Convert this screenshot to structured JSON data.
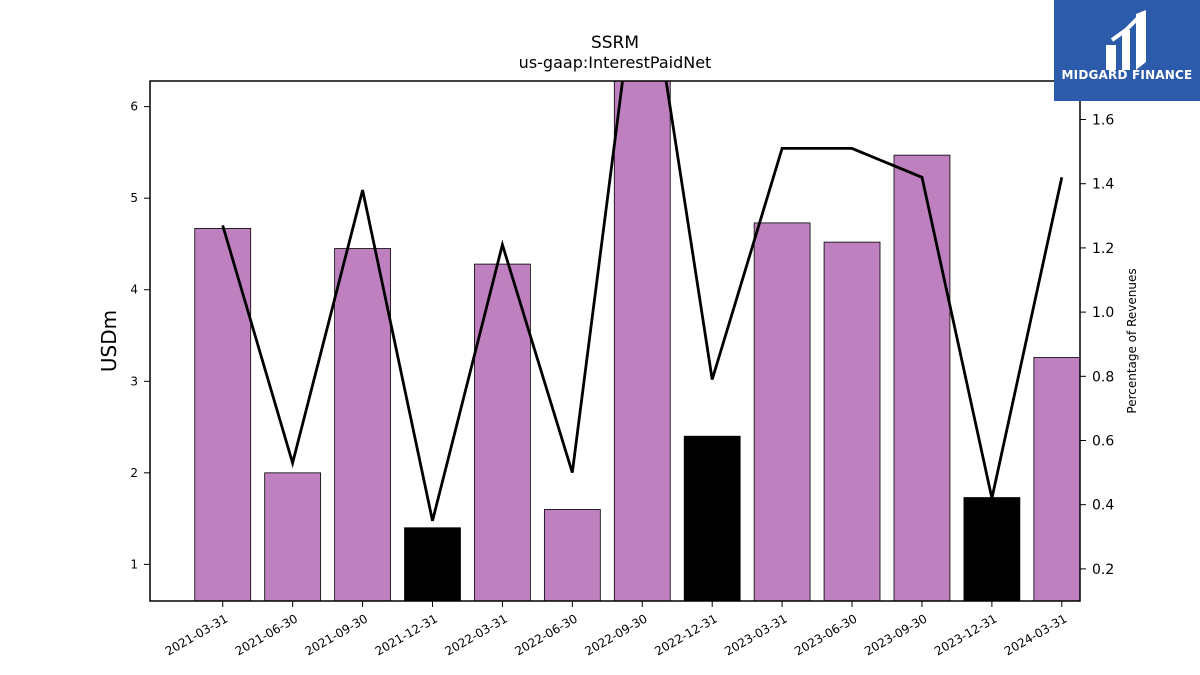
{
  "chart_data": {
    "type": "bar+line",
    "title": "SSRM",
    "subtitle": "us-gaap:InterestPaidNet",
    "ylabel": "USDm",
    "y2label": "Percentage of Revenues",
    "categories": [
      "2021-03-31",
      "2021-06-30",
      "2021-09-30",
      "2021-12-31",
      "2022-03-31",
      "2022-06-30",
      "2022-09-30",
      "2022-12-31",
      "2023-03-31",
      "2023-06-30",
      "2023-09-30",
      "2023-12-31",
      "2024-03-31"
    ],
    "bars": {
      "values": [
        4.67,
        2.0,
        4.45,
        1.4,
        4.28,
        1.6,
        6.4,
        2.4,
        4.73,
        4.52,
        5.47,
        1.73,
        3.26
      ],
      "highlight": [
        false,
        false,
        false,
        true,
        false,
        false,
        false,
        true,
        false,
        false,
        false,
        true,
        false
      ]
    },
    "line": {
      "values": [
        1.27,
        0.53,
        1.38,
        0.35,
        1.21,
        0.5,
        2.2,
        0.79,
        1.51,
        1.51,
        1.42,
        0.42,
        1.42
      ]
    },
    "ylim": [
      0.6,
      6.28
    ],
    "y2lim": [
      0.1,
      1.72
    ],
    "yticks": [
      1,
      2,
      3,
      4,
      5,
      6
    ],
    "y2ticks": [
      0.2,
      0.4,
      0.6,
      0.8,
      1.0,
      1.2,
      1.4,
      1.6
    ],
    "colors": {
      "bar": "#bf80bf",
      "bar_highlight": "#000000",
      "line": "#000000"
    }
  },
  "logo": {
    "text": "MIDGARD FINANCE",
    "background": "#2d5bab"
  }
}
